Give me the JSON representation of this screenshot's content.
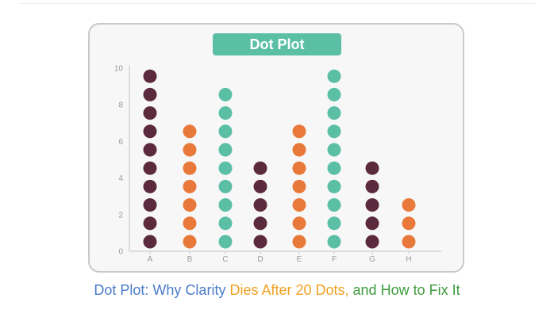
{
  "chart_data": {
    "type": "scatter",
    "subtype": "dot-plot",
    "title": "Dot Plot",
    "categories": [
      "A",
      "B",
      "C",
      "D",
      "E",
      "F",
      "G",
      "H"
    ],
    "values": [
      10,
      7,
      9,
      5,
      7,
      10,
      5,
      3
    ],
    "colors": [
      "#5b2a3c",
      "#e8793a",
      "#5bbfa6",
      "#5b2a3c",
      "#e8793a",
      "#5bbfa6",
      "#5b2a3c",
      "#e8793a"
    ],
    "yticks": [
      "0",
      "2",
      "4",
      "6",
      "8",
      "10"
    ],
    "ylim": [
      0,
      10
    ],
    "grid": false,
    "legend": "none"
  },
  "caption": {
    "part1": "Dot Plot: Why Clarity ",
    "part2": "Dies After 20 Dots,",
    "part3": " and How to Fix It"
  },
  "colors": {
    "title_bg": "#5bbfa6",
    "card_bg": "#f7f7f7",
    "card_border": "#c9c9c9",
    "caption_blue": "#4a7bc8",
    "caption_orange": "#f0a020",
    "caption_green": "#3d9a3d"
  }
}
